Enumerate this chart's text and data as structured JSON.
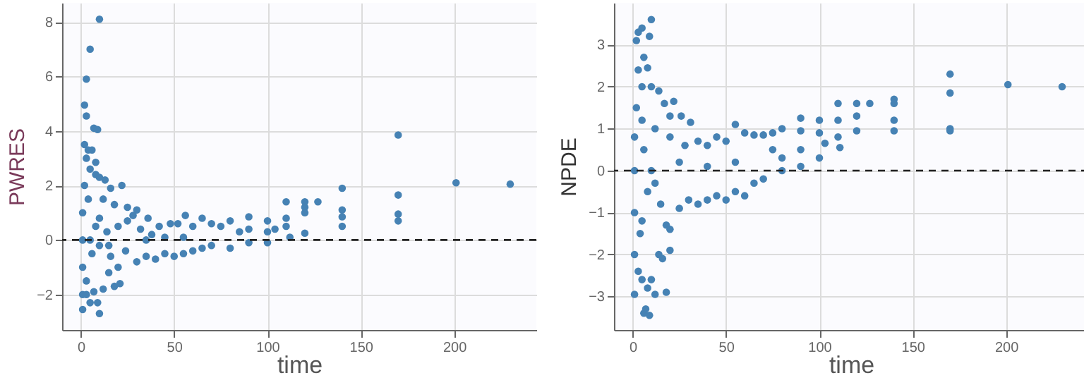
{
  "chart_data": [
    {
      "type": "scatter",
      "xlabel": "time",
      "ylabel": "PWRES",
      "xlim": [
        -10,
        244
      ],
      "ylim": [
        -3.3,
        8.7
      ],
      "xticks": [
        0,
        50,
        100,
        150,
        200
      ],
      "yticks": [
        -2,
        0,
        2,
        4,
        6,
        8
      ],
      "grid": true,
      "marker": "circle",
      "ref_lines": [
        {
          "axis": "y",
          "value": 0,
          "line_style": "dashed",
          "color": "#222222"
        }
      ],
      "series": [
        {
          "color": "#4682b4",
          "x": [
            10,
            5,
            3,
            2,
            3,
            7,
            9,
            2,
            4,
            6,
            8,
            3,
            5,
            8,
            10,
            13,
            16,
            22,
            12,
            18,
            25,
            30,
            36,
            28,
            2,
            1,
            1,
            1,
            1,
            1,
            3,
            5,
            9,
            10,
            7,
            12,
            18,
            21,
            15,
            20,
            3,
            6,
            8,
            4,
            10,
            14,
            16,
            20,
            24,
            25,
            30,
            32,
            35,
            38,
            40,
            42,
            45,
            48,
            50,
            52,
            55,
            56,
            60,
            60,
            65,
            65,
            70,
            70,
            75,
            80,
            80,
            85,
            90,
            90,
            90,
            100,
            100,
            100,
            104,
            110,
            110,
            110,
            112,
            120,
            120,
            120,
            120,
            127,
            140,
            140,
            140,
            140,
            170,
            170,
            170,
            170,
            201,
            230,
            35,
            45,
            55,
            5,
            10,
            15
          ],
          "values": [
            8.1,
            7,
            5.9,
            4.95,
            4.55,
            4.1,
            4.05,
            3.5,
            3.3,
            3.3,
            2.85,
            3.0,
            2.6,
            2.4,
            2.3,
            2.2,
            1.9,
            2.0,
            1.5,
            1.3,
            1.2,
            1.1,
            0.8,
            0.9,
            2.0,
            1.0,
            0,
            -1,
            -2,
            -2.55,
            -2.0,
            -2.3,
            -2.3,
            -2.7,
            -1.9,
            -1.8,
            -1.7,
            -1.6,
            -1.2,
            -1.0,
            -1.5,
            -0.5,
            0.5,
            1.5,
            -0.2,
            0.3,
            -0.6,
            0.5,
            -0.4,
            0.7,
            -0.8,
            0.4,
            -0.6,
            0.2,
            -0.7,
            0.5,
            -0.5,
            0.6,
            -0.6,
            0.6,
            -0.5,
            0.9,
            -0.4,
            0.5,
            0.8,
            -0.3,
            0.6,
            -0.2,
            0.5,
            0.7,
            -0.3,
            0.3,
            0.85,
            -0.1,
            0.4,
            0.7,
            -0.1,
            0.3,
            0.4,
            1.4,
            0.8,
            0.5,
            0.1,
            1.4,
            1.0,
            1.2,
            0.25,
            1.4,
            1.9,
            1.1,
            0.85,
            0.5,
            3.85,
            1.65,
            0.95,
            0.7,
            2.1,
            2.05,
            0,
            0.1,
            0.1,
            0,
            0.8,
            -0.2
          ]
        }
      ]
    },
    {
      "type": "scatter",
      "xlabel": "time",
      "ylabel": "NPDE",
      "xlim": [
        -10,
        244
      ],
      "ylim": [
        -3.8,
        4
      ],
      "xticks": [
        0,
        50,
        100,
        150,
        200
      ],
      "yticks": [
        -3,
        -2,
        -1,
        0,
        1,
        2,
        3
      ],
      "grid": true,
      "marker": "circle",
      "ref_lines": [
        {
          "axis": "y",
          "value": 0,
          "line_style": "dashed",
          "color": "#222222"
        }
      ],
      "series": [
        {
          "color": "#4682b4",
          "x": [
            10,
            5,
            3,
            2,
            9,
            6,
            3,
            8,
            5,
            10,
            14,
            17,
            22,
            26,
            31,
            20,
            2,
            1,
            1,
            1,
            1,
            1,
            3,
            5,
            8,
            10,
            12,
            18,
            6,
            9,
            7,
            14,
            16,
            20,
            20,
            18,
            4,
            6,
            8,
            12,
            15,
            20,
            25,
            28,
            30,
            35,
            35,
            40,
            40,
            45,
            45,
            50,
            50,
            55,
            55,
            60,
            60,
            65,
            65,
            70,
            70,
            75,
            75,
            80,
            80,
            80,
            90,
            90,
            90,
            90,
            100,
            100,
            100,
            103,
            110,
            110,
            110,
            111,
            120,
            120,
            120,
            127,
            140,
            140,
            140,
            140,
            170,
            170,
            170,
            170,
            201,
            230,
            10,
            25,
            40,
            55,
            5,
            5,
            12
          ],
          "values": [
            3.6,
            3.4,
            3.3,
            3.1,
            3.2,
            2.7,
            2.4,
            2.45,
            2.0,
            2.0,
            1.9,
            1.6,
            1.65,
            1.3,
            1.15,
            1.3,
            1.5,
            0.8,
            0,
            -1,
            -2,
            -2.95,
            -2.4,
            -2.6,
            -2.8,
            -2.6,
            -2.95,
            -2.9,
            -3.4,
            -3.45,
            -3.3,
            -2.0,
            -2.1,
            -1.9,
            -1.4,
            -1.3,
            -1.5,
            0.5,
            -0.5,
            1.0,
            -0.8,
            0.8,
            -0.9,
            0.6,
            -0.7,
            0.7,
            -0.8,
            0.6,
            -0.7,
            0.8,
            -0.6,
            0.7,
            -0.7,
            1.1,
            -0.5,
            0.9,
            -0.6,
            0.85,
            -0.3,
            0.85,
            -0.2,
            0.9,
            0.5,
            1.0,
            0.3,
            0.0,
            1.25,
            0.95,
            0.5,
            0.1,
            1.2,
            0.9,
            0.3,
            0.65,
            1.6,
            1.2,
            0.8,
            0.55,
            1.6,
            1.3,
            0.95,
            1.6,
            1.7,
            1.6,
            1.2,
            0.95,
            2.3,
            1.85,
            1.0,
            0.95,
            2.05,
            2.0,
            0,
            0.2,
            0.1,
            0.2,
            1.2,
            -1.2,
            -0.3
          ]
        }
      ]
    }
  ]
}
